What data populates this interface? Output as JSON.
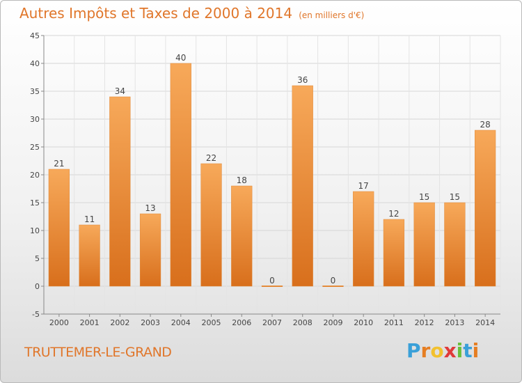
{
  "title": "Autres Impôts et Taxes de 2000 à 2014",
  "subtitle": "(en milliers d'€)",
  "commune": "TRUTTEMER-LE-GRAND",
  "logo": {
    "letters": [
      "P",
      "r",
      "o",
      "x",
      "i",
      "t",
      "i"
    ],
    "colors": [
      "#3aa0d8",
      "#e67e22",
      "#f2c12e",
      "#e03a3a",
      "#6abf3b",
      "#3aa0d8",
      "#e67e22"
    ]
  },
  "colors": {
    "bar_light": "#f7a95a",
    "bar_dark": "#d86f1c",
    "accent": "#e0762a"
  },
  "chart_data": {
    "type": "bar",
    "title": "Autres Impôts et Taxes de 2000 à 2014",
    "subtitle": "(en milliers d'€)",
    "categories": [
      "2000",
      "2001",
      "2002",
      "2003",
      "2004",
      "2005",
      "2006",
      "2007",
      "2008",
      "2009",
      "2010",
      "2011",
      "2012",
      "2013",
      "2014"
    ],
    "values": [
      21,
      11,
      34,
      13,
      40,
      22,
      18,
      0,
      36,
      0,
      17,
      12,
      15,
      15,
      28
    ],
    "ylim": [
      -5,
      45
    ],
    "yticks": [
      -5,
      0,
      5,
      10,
      15,
      20,
      25,
      30,
      35,
      40,
      45
    ],
    "grid": true,
    "legend": "none"
  }
}
